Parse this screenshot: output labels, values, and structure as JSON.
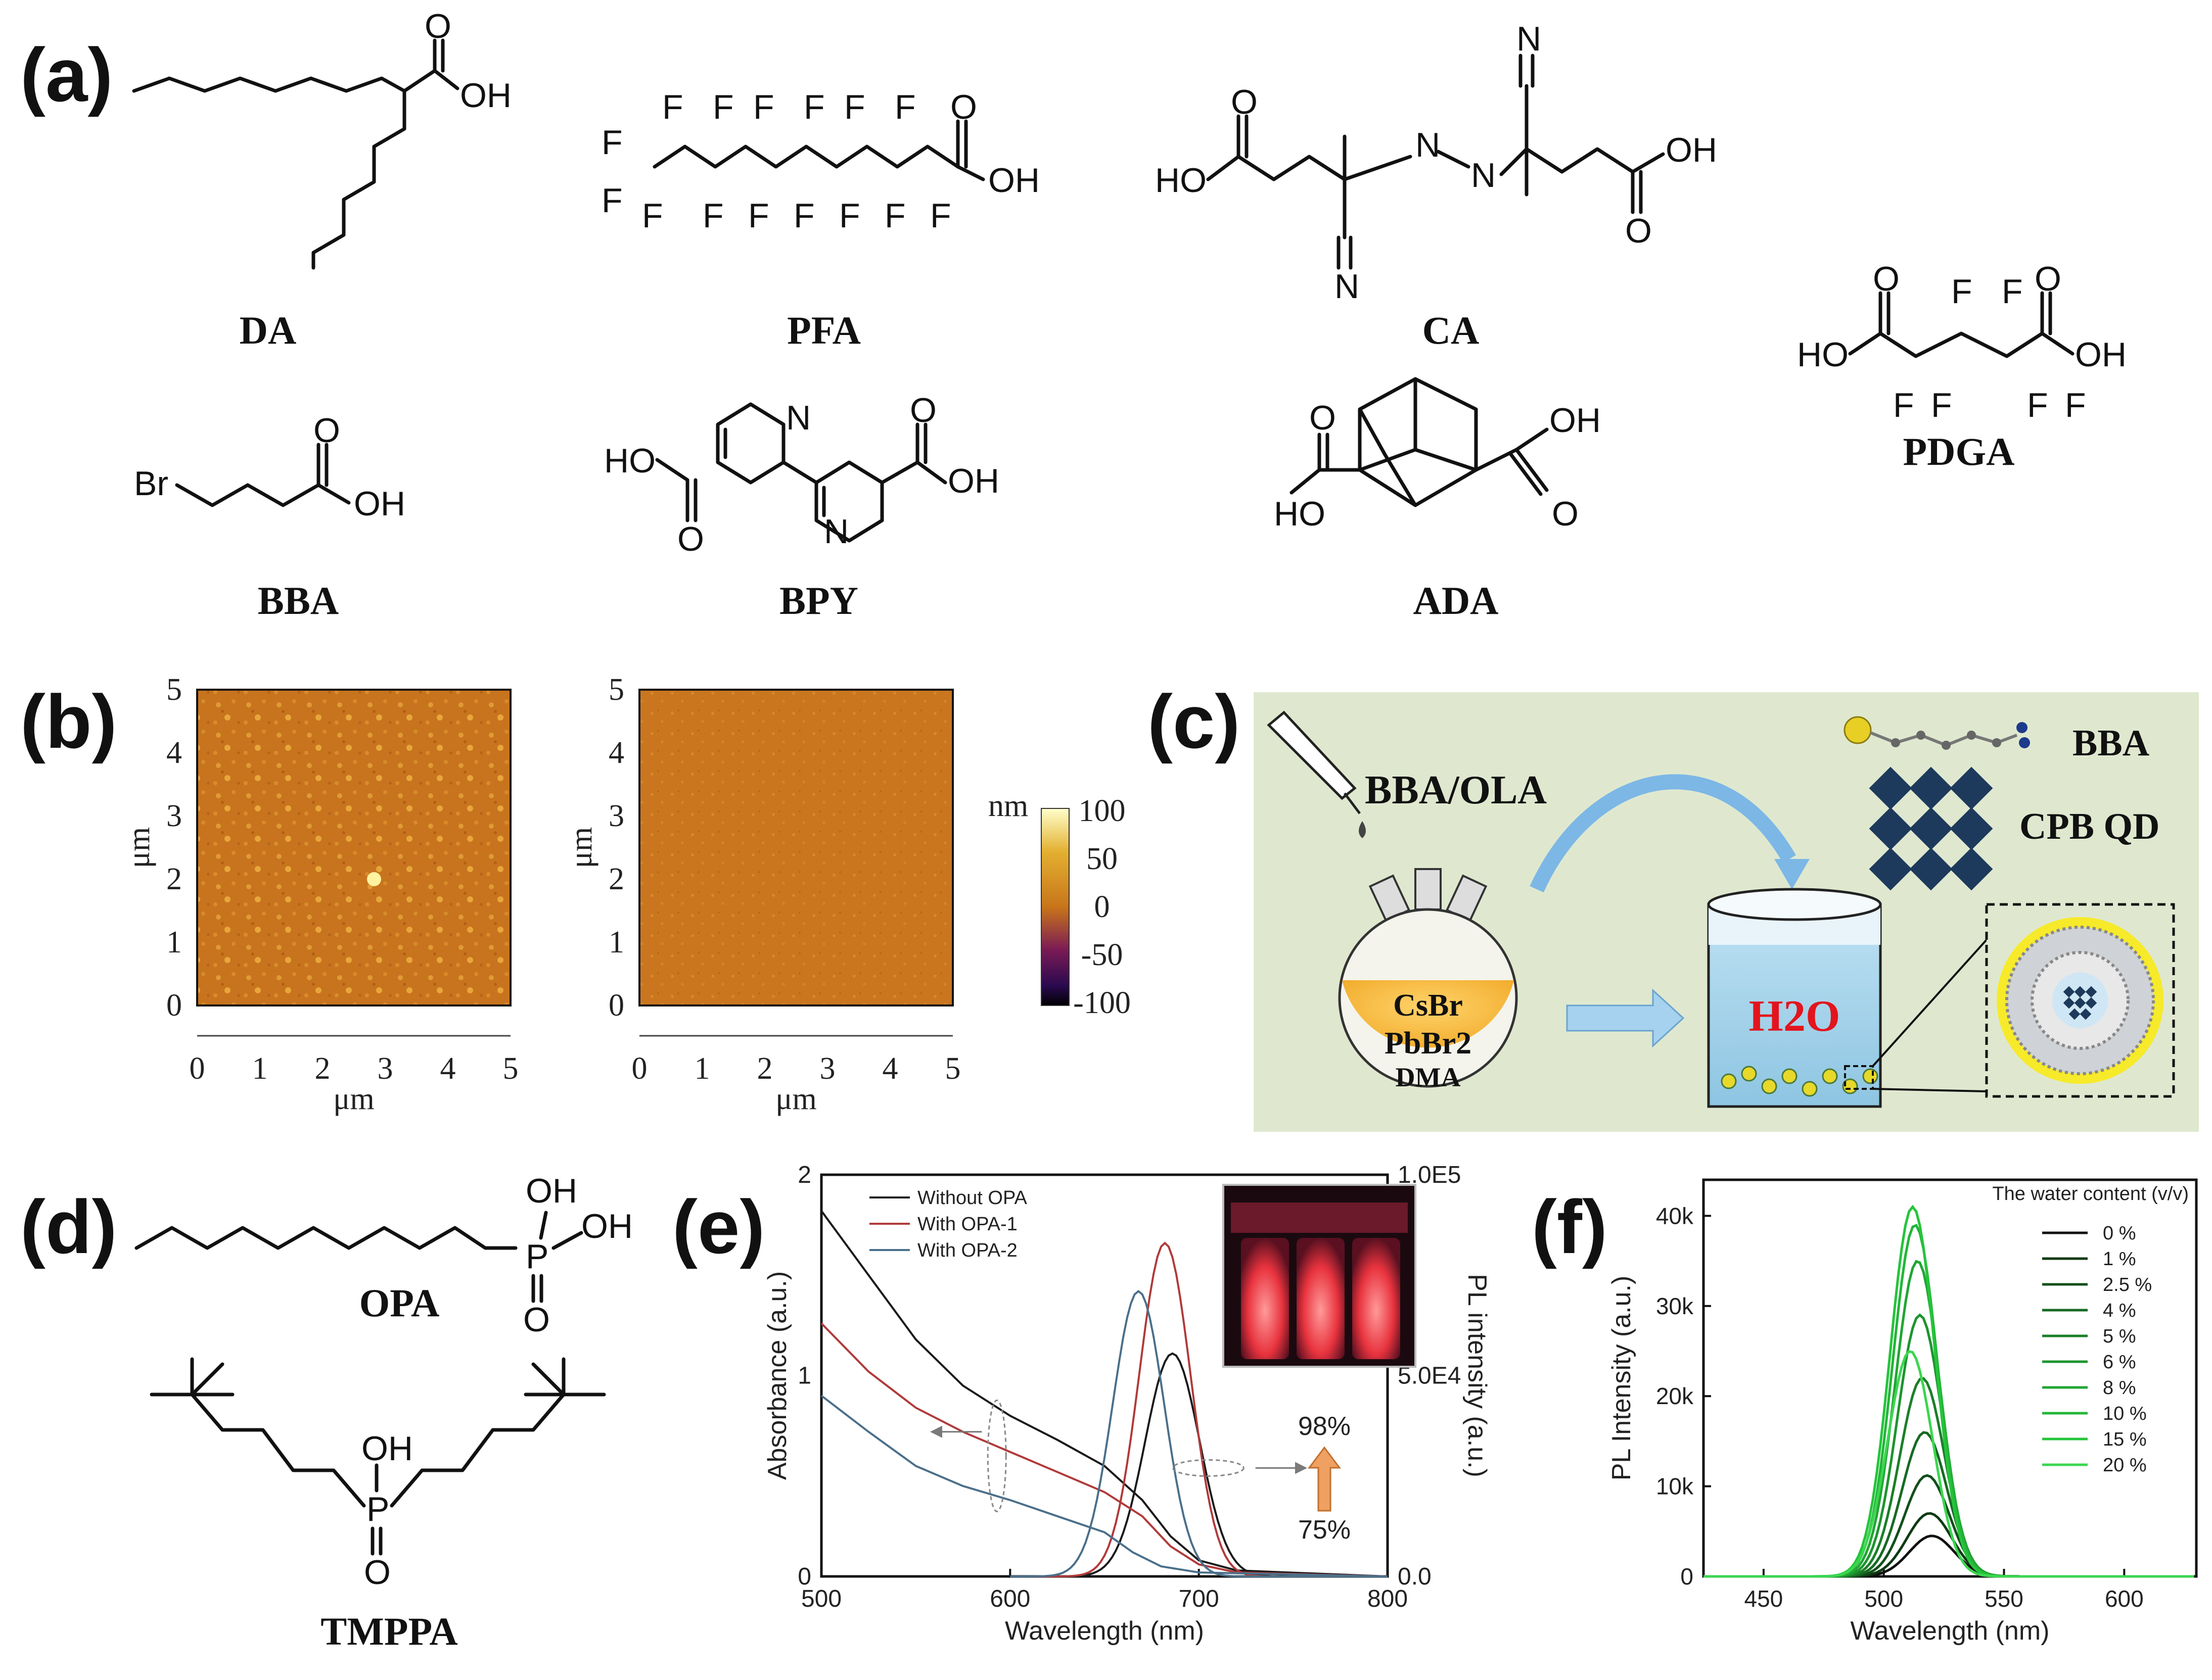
{
  "panel_labels": {
    "a": "(a)",
    "b": "(b)",
    "c": "(c)",
    "d": "(d)",
    "e": "(e)",
    "f": "(f)"
  },
  "molecules": {
    "DA": "DA",
    "PFA": "PFA",
    "CA": "CA",
    "PDGA": "PDGA",
    "BBA": "BBA",
    "BPY": "BPY",
    "ADA": "ADA",
    "OPA": "OPA",
    "TMPPA": "TMPPA"
  },
  "atoms": {
    "O": "O",
    "OH": "OH",
    "HO": "HO",
    "F": "F",
    "N": "N",
    "Br": "Br",
    "P": "P"
  },
  "afm": {
    "y_label": "μm",
    "x_label": "μm",
    "ticks": [
      "0",
      "1",
      "2",
      "3",
      "4",
      "5"
    ],
    "colorbar_unit": "nm",
    "colorbar_ticks": [
      "100",
      "50",
      "0",
      "-50",
      "-100"
    ],
    "colorbar_colors": [
      "#ffffcc",
      "#e3b030",
      "#c8751a",
      "#7a1a55",
      "#2a0a50",
      "#000000"
    ]
  },
  "scheme_c": {
    "precursor": "BBA/OLA",
    "flask_lines": [
      "CsBr",
      "PbBr2",
      "DMA"
    ],
    "water_label": "H2O",
    "legend_ligand": "BBA",
    "legend_qd": "CPB QD",
    "background_color": "#dfe8cf"
  },
  "chart_data": [
    {
      "panel": "e",
      "type": "line",
      "xlabel": "Wavelength (nm)",
      "ylabel": "Absorbance (a.u.)",
      "y2label": "PL intensity (a.u.)",
      "xlim": [
        500,
        800
      ],
      "ylim": [
        0,
        2
      ],
      "y2lim": [
        0,
        100000
      ],
      "x_ticks": [
        "500",
        "600",
        "700",
        "800"
      ],
      "y_ticks": [
        "0",
        "1",
        "2"
      ],
      "y2_ticks": [
        "0.0",
        "5.0E4",
        "1.0E5"
      ],
      "annotation_top": "98%",
      "annotation_bottom": "75%",
      "series": [
        {
          "name": "Without OPA",
          "color": "#1a1a1a",
          "absorbance": [
            [
              500,
              1.82
            ],
            [
              525,
              1.5
            ],
            [
              550,
              1.18
            ],
            [
              575,
              0.95
            ],
            [
              600,
              0.8
            ],
            [
              625,
              0.68
            ],
            [
              650,
              0.55
            ],
            [
              670,
              0.38
            ],
            [
              685,
              0.2
            ],
            [
              700,
              0.08
            ],
            [
              720,
              0.03
            ],
            [
              800,
              0.0
            ]
          ],
          "pl_peak": 686,
          "pl_max": 55500,
          "pl_fwhm": 34
        },
        {
          "name": "With  OPA-1",
          "color": "#b03a3a",
          "absorbance": [
            [
              500,
              1.26
            ],
            [
              525,
              1.02
            ],
            [
              550,
              0.84
            ],
            [
              575,
              0.72
            ],
            [
              600,
              0.62
            ],
            [
              625,
              0.52
            ],
            [
              650,
              0.42
            ],
            [
              670,
              0.3
            ],
            [
              685,
              0.15
            ],
            [
              700,
              0.06
            ],
            [
              720,
              0.02
            ],
            [
              800,
              0.0
            ]
          ],
          "pl_peak": 682,
          "pl_max": 83000,
          "pl_fwhm": 32
        },
        {
          "name": "With  OPA-2",
          "color": "#4a6f8a",
          "absorbance": [
            [
              500,
              0.9
            ],
            [
              525,
              0.72
            ],
            [
              550,
              0.55
            ],
            [
              575,
              0.45
            ],
            [
              600,
              0.38
            ],
            [
              625,
              0.3
            ],
            [
              650,
              0.22
            ],
            [
              665,
              0.12
            ],
            [
              680,
              0.05
            ],
            [
              700,
              0.02
            ],
            [
              800,
              0.0
            ]
          ],
          "pl_peak": 668,
          "pl_max": 71000,
          "pl_fwhm": 32
        }
      ]
    },
    {
      "panel": "f",
      "type": "line",
      "xlabel": "Wavelength (nm)",
      "ylabel": "PL Intensity (a.u.)",
      "xlim": [
        425,
        630
      ],
      "ylim": [
        0,
        44000
      ],
      "x_ticks": [
        450,
        500,
        550,
        600
      ],
      "y_ticks": [
        0,
        10000,
        20000,
        30000,
        40000
      ],
      "y_tick_labels": [
        "0",
        "10k",
        "20k",
        "30k",
        "40k"
      ],
      "legend_title": "The water content (v/v)",
      "series": [
        {
          "name": "0   %",
          "peak": 520,
          "max": 4500,
          "color": "#111111"
        },
        {
          "name": "1   %",
          "peak": 519,
          "max": 7000,
          "color": "#0d3a12"
        },
        {
          "name": "2.5 %",
          "peak": 518,
          "max": 11200,
          "color": "#11501a"
        },
        {
          "name": "4   %",
          "peak": 517,
          "max": 16000,
          "color": "#166a22"
        },
        {
          "name": "5   %",
          "peak": 516,
          "max": 22000,
          "color": "#1a7f28"
        },
        {
          "name": "6   %",
          "peak": 515,
          "max": 29000,
          "color": "#1d942e"
        },
        {
          "name": "8   %",
          "peak": 514,
          "max": 35000,
          "color": "#20a633"
        },
        {
          "name": "10 %",
          "peak": 513,
          "max": 39000,
          "color": "#22b637"
        },
        {
          "name": "15 %",
          "peak": 512,
          "max": 41000,
          "color": "#25c43b"
        },
        {
          "name": "20 %",
          "peak": 511,
          "max": 25000,
          "color": "#3bd64f"
        }
      ],
      "fwhm": 22
    }
  ]
}
